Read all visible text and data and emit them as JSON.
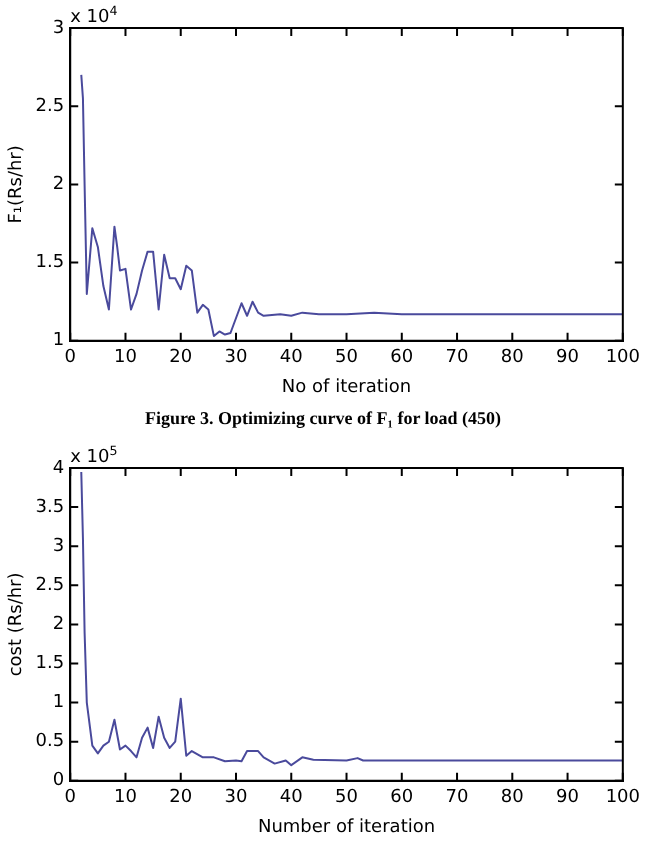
{
  "chart_data": [
    {
      "type": "line",
      "xlabel": "No of iteration",
      "ylabel": "F₁(Rs/hr)",
      "annotations": [
        "x 10$^{4}$",
        "Figure 3. Optimizing curve of F₁ for load (450)"
      ],
      "xlim": [
        0,
        100
      ],
      "xticks": [
        0,
        10,
        20,
        30,
        40,
        50,
        60,
        70,
        80,
        90,
        100
      ],
      "ylim": [
        1,
        3
      ],
      "yticks": [
        1,
        1.5,
        2,
        2.5,
        3
      ],
      "grid": false,
      "legend": false,
      "marker": "none",
      "line_style": "solid",
      "series": [
        {
          "color": "#4a4a9c",
          "x": [
            2,
            2.3,
            2.6,
            3,
            4,
            5,
            6,
            7,
            8,
            8.5,
            9,
            10,
            11,
            12,
            13,
            14,
            15,
            16,
            17,
            18,
            19,
            20,
            21,
            22,
            23,
            24,
            25,
            26,
            27,
            28,
            29,
            31,
            32,
            33,
            34,
            35,
            38,
            40,
            42,
            45,
            50,
            55,
            60,
            100
          ],
          "values": [
            2.7,
            2.55,
            2.0,
            1.3,
            1.72,
            1.6,
            1.35,
            1.2,
            1.73,
            1.6,
            1.45,
            1.46,
            1.2,
            1.3,
            1.45,
            1.57,
            1.57,
            1.2,
            1.55,
            1.4,
            1.4,
            1.33,
            1.48,
            1.45,
            1.18,
            1.23,
            1.2,
            1.03,
            1.06,
            1.04,
            1.05,
            1.24,
            1.16,
            1.25,
            1.18,
            1.16,
            1.17,
            1.16,
            1.18,
            1.17,
            1.17,
            1.18,
            1.17,
            1.17
          ]
        }
      ]
    },
    {
      "type": "line",
      "xlabel": "Number of iteration",
      "ylabel": "cost (Rs/hr)",
      "annotations": [
        "x 10$^{5}$"
      ],
      "xlim": [
        0,
        100
      ],
      "xticks": [
        0,
        10,
        20,
        30,
        40,
        50,
        60,
        70,
        80,
        90,
        100
      ],
      "ylim": [
        0,
        4
      ],
      "yticks": [
        0,
        0.5,
        1,
        1.5,
        2,
        2.5,
        3,
        3.5,
        4
      ],
      "grid": false,
      "legend": false,
      "marker": "none",
      "line_style": "solid",
      "series": [
        {
          "color": "#4a4a9c",
          "x": [
            2,
            2.3,
            2.6,
            3,
            4,
            5,
            6,
            7,
            8,
            9,
            10,
            11,
            12,
            13,
            14,
            15,
            16,
            17,
            18,
            19,
            20,
            21,
            22,
            24,
            26,
            28,
            30,
            31,
            32,
            34,
            35,
            37,
            39,
            40,
            42,
            44,
            50,
            52,
            53,
            100
          ],
          "values": [
            3.95,
            3.1,
            1.9,
            1.0,
            0.45,
            0.35,
            0.45,
            0.5,
            0.78,
            0.4,
            0.45,
            0.38,
            0.3,
            0.55,
            0.68,
            0.42,
            0.82,
            0.55,
            0.42,
            0.5,
            1.05,
            0.32,
            0.38,
            0.3,
            0.3,
            0.25,
            0.26,
            0.25,
            0.38,
            0.38,
            0.3,
            0.22,
            0.26,
            0.2,
            0.3,
            0.27,
            0.26,
            0.29,
            0.26,
            0.26
          ]
        }
      ]
    }
  ]
}
